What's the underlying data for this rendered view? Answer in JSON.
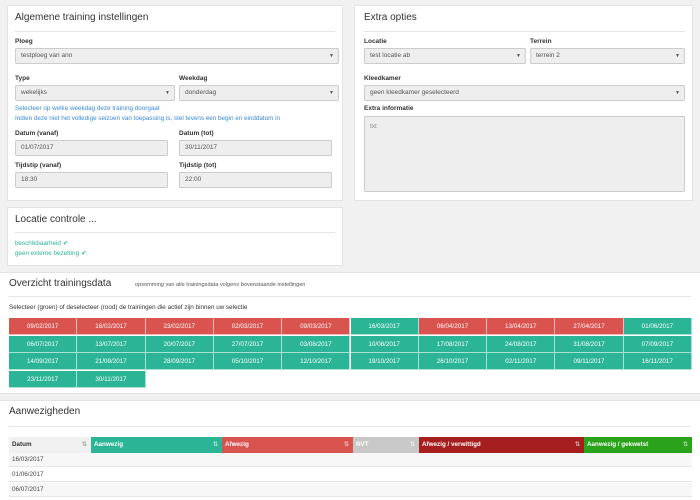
{
  "colors": {
    "green": "#2bb596",
    "red": "#d9534f",
    "darkred": "#a61e1e",
    "brightgreen": "#2aa21a",
    "grey": "#c8c8c8",
    "blue": "#3a8ad8"
  },
  "general": {
    "title": "Algemene training instellingen",
    "ploeg": {
      "label": "Ploeg",
      "value": "testploeg van ann"
    },
    "type": {
      "label": "Type",
      "value": "wekelijks"
    },
    "weekdag": {
      "label": "Weekdag",
      "value": "donderdag"
    },
    "hint1": "Selecteer op welke weekdag deze training doorgaat",
    "hint2": "Indien deze niet het volledige seizoen van toepassing is, stel tevens een begin en einddatum in",
    "datum_vanaf": {
      "label": "Datum (vanaf)",
      "value": "01/07/2017"
    },
    "datum_tot": {
      "label": "Datum (tot)",
      "value": "30/11/2017"
    },
    "tijdstip_vanaf": {
      "label": "Tijdstip (vanaf)",
      "value": "18:30"
    },
    "tijdstip_tot": {
      "label": "Tijdstip (tot)",
      "value": "22:00"
    }
  },
  "extra": {
    "title": "Extra opties",
    "locatie": {
      "label": "Locatie",
      "value": "test locatie ab"
    },
    "terrein": {
      "label": "Terrein",
      "value": "terrein 2"
    },
    "kleedkamer": {
      "label": "Kleedkamer",
      "value": "geen kleedkamer geselecteerd"
    },
    "info": {
      "label": "Extra informatie",
      "placeholder": "txt"
    }
  },
  "control": {
    "title": "Locatie controle ...",
    "items": [
      "beschikbaarheid",
      "geen externe bezetting"
    ]
  },
  "overview": {
    "title": "Overzicht trainingsdata",
    "subtitle": "opsomming van alle trainingsdata volgens bovenstaande instellingen",
    "instruction": "Selecteer (groen) of deselecteer (rood) de trainingen die actief zijn binnen uw selectie",
    "dates": [
      {
        "d": "09/02/2017",
        "s": "red"
      },
      {
        "d": "16/02/2017",
        "s": "red"
      },
      {
        "d": "23/02/2017",
        "s": "red"
      },
      {
        "d": "02/03/2017",
        "s": "red"
      },
      {
        "d": "09/03/2017",
        "s": "red"
      },
      {
        "d": "16/03/2017",
        "s": "green"
      },
      {
        "d": "06/04/2017",
        "s": "red"
      },
      {
        "d": "13/04/2017",
        "s": "red"
      },
      {
        "d": "27/04/2017",
        "s": "red"
      },
      {
        "d": "01/06/2017",
        "s": "green"
      },
      {
        "d": "06/07/2017",
        "s": "green"
      },
      {
        "d": "13/07/2017",
        "s": "green"
      },
      {
        "d": "20/07/2017",
        "s": "green"
      },
      {
        "d": "27/07/2017",
        "s": "green"
      },
      {
        "d": "03/08/2017",
        "s": "green"
      },
      {
        "d": "10/08/2017",
        "s": "green"
      },
      {
        "d": "17/08/2017",
        "s": "green"
      },
      {
        "d": "24/08/2017",
        "s": "green"
      },
      {
        "d": "31/08/2017",
        "s": "green"
      },
      {
        "d": "07/09/2017",
        "s": "green"
      },
      {
        "d": "14/09/2017",
        "s": "green"
      },
      {
        "d": "21/09/2017",
        "s": "green"
      },
      {
        "d": "28/09/2017",
        "s": "green"
      },
      {
        "d": "05/10/2017",
        "s": "green"
      },
      {
        "d": "12/10/2017",
        "s": "green"
      },
      {
        "d": "19/10/2017",
        "s": "green"
      },
      {
        "d": "26/10/2017",
        "s": "green"
      },
      {
        "d": "02/11/2017",
        "s": "green"
      },
      {
        "d": "09/11/2017",
        "s": "green"
      },
      {
        "d": "16/11/2017",
        "s": "green"
      },
      {
        "d": "23/11/2017",
        "s": "green"
      },
      {
        "d": "30/11/2017",
        "s": "green"
      }
    ]
  },
  "attendance": {
    "title": "Aanwezigheden",
    "columns": [
      {
        "label": "Datum",
        "c": "white"
      },
      {
        "label": "Aanwezig",
        "c": "green"
      },
      {
        "label": "Afwezig",
        "c": "red"
      },
      {
        "label": "NVT",
        "c": "grey"
      },
      {
        "label": "Afwezig / verwittigd",
        "c": "darkred"
      },
      {
        "label": "Aanwezig / gekwetst",
        "c": "brightgreen"
      }
    ],
    "rows": [
      "16/03/2017",
      "01/06/2017",
      "06/07/2017"
    ]
  }
}
